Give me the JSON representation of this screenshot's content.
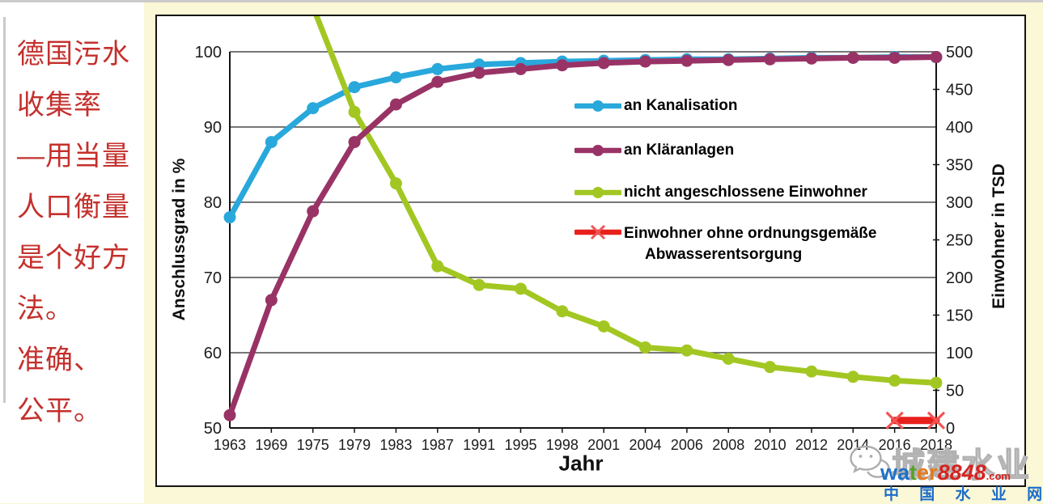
{
  "page": {
    "background_color": "#FAF8D6",
    "panel_background": "#FFFFFF",
    "panel_border_color": "#141414"
  },
  "side_note": {
    "color": "#C4302C",
    "lines": [
      "德国污水",
      "收集率",
      "—用当量",
      "人口衡量",
      "是个好方",
      "法。",
      "准确、",
      "公平。"
    ]
  },
  "chart_data": {
    "type": "line",
    "title": "",
    "xlabel": "Jahr",
    "ylabel_left": "Anschlussgrad in %",
    "ylabel_right": "Einwohner in TSD",
    "ylim_left": [
      50,
      100
    ],
    "ylim_right": [
      0,
      500
    ],
    "yticks_left": [
      50,
      60,
      70,
      80,
      90,
      100
    ],
    "yticks_right": [
      0,
      50,
      100,
      150,
      200,
      250,
      300,
      350,
      400,
      450,
      500
    ],
    "grid": "horizontal",
    "legend_position": "inside upper right",
    "categories": [
      "1963",
      "1969",
      "1975",
      "1979",
      "1983",
      "1987",
      "1991",
      "1995",
      "1998",
      "2001",
      "2004",
      "2006",
      "2008",
      "2010",
      "2012",
      "2014",
      "2016",
      "2018"
    ],
    "z_order": [
      0,
      2,
      1,
      3
    ],
    "series": [
      {
        "id": "kanalisation",
        "name": "an Kanalisation",
        "axis": "left",
        "unit": "%",
        "color": "#29A8DC",
        "marker": "circle",
        "values": [
          78,
          88,
          92.5,
          95.3,
          96.6,
          97.7,
          98.3,
          98.5,
          98.7,
          98.8,
          98.9,
          99.0,
          99.0,
          99.1,
          99.2,
          99.2,
          99.3,
          99.3
        ]
      },
      {
        "id": "klaeranlagen",
        "name": "an Kläranlagen",
        "axis": "left",
        "unit": "%",
        "color": "#993366",
        "marker": "circle",
        "values": [
          51.7,
          67,
          78.8,
          88,
          93,
          96,
          97.2,
          97.7,
          98.2,
          98.5,
          98.7,
          98.8,
          98.9,
          99.0,
          99.1,
          99.2,
          99.2,
          99.3
        ]
      },
      {
        "id": "nicht-angeschlossen",
        "name": "nicht angeschlossene Einwohner",
        "axis": "right",
        "unit": "TSD",
        "color": "#A3C722",
        "marker": "circle",
        "values": [
          null,
          null,
          560,
          420,
          325,
          215,
          190,
          185,
          155,
          135,
          107,
          103,
          92,
          81,
          75,
          68,
          63,
          60
        ]
      },
      {
        "id": "ohne-entsorgung",
        "name": "Einwohner ohne ordnungsgemäße Abwasserentsorgung",
        "name_lines": [
          "Einwohner ohne ordnungsgemäße",
          "Abwasserentsorgung"
        ],
        "axis": "right",
        "unit": "TSD",
        "color": "#E8201C",
        "marker_color": "#F05555",
        "marker": "x",
        "line_width": 9,
        "values": [
          null,
          null,
          null,
          null,
          null,
          null,
          null,
          null,
          null,
          null,
          null,
          null,
          null,
          null,
          null,
          null,
          10,
          10
        ]
      }
    ]
  },
  "watermark": {
    "brand": "城建水业",
    "site_parts": [
      {
        "text": "wa",
        "color": "#1E72C8"
      },
      {
        "text": "t",
        "color": "#55A326"
      },
      {
        "text": "er",
        "color": "#E87817"
      },
      {
        "text": "8848",
        "color": "#D62420",
        "italic": true
      },
      {
        "text": ".com",
        "color": "#D62420",
        "small": true
      }
    ],
    "site_cn": "中 国 水 业 网",
    "site_cn_color": "#1C6CCB"
  }
}
